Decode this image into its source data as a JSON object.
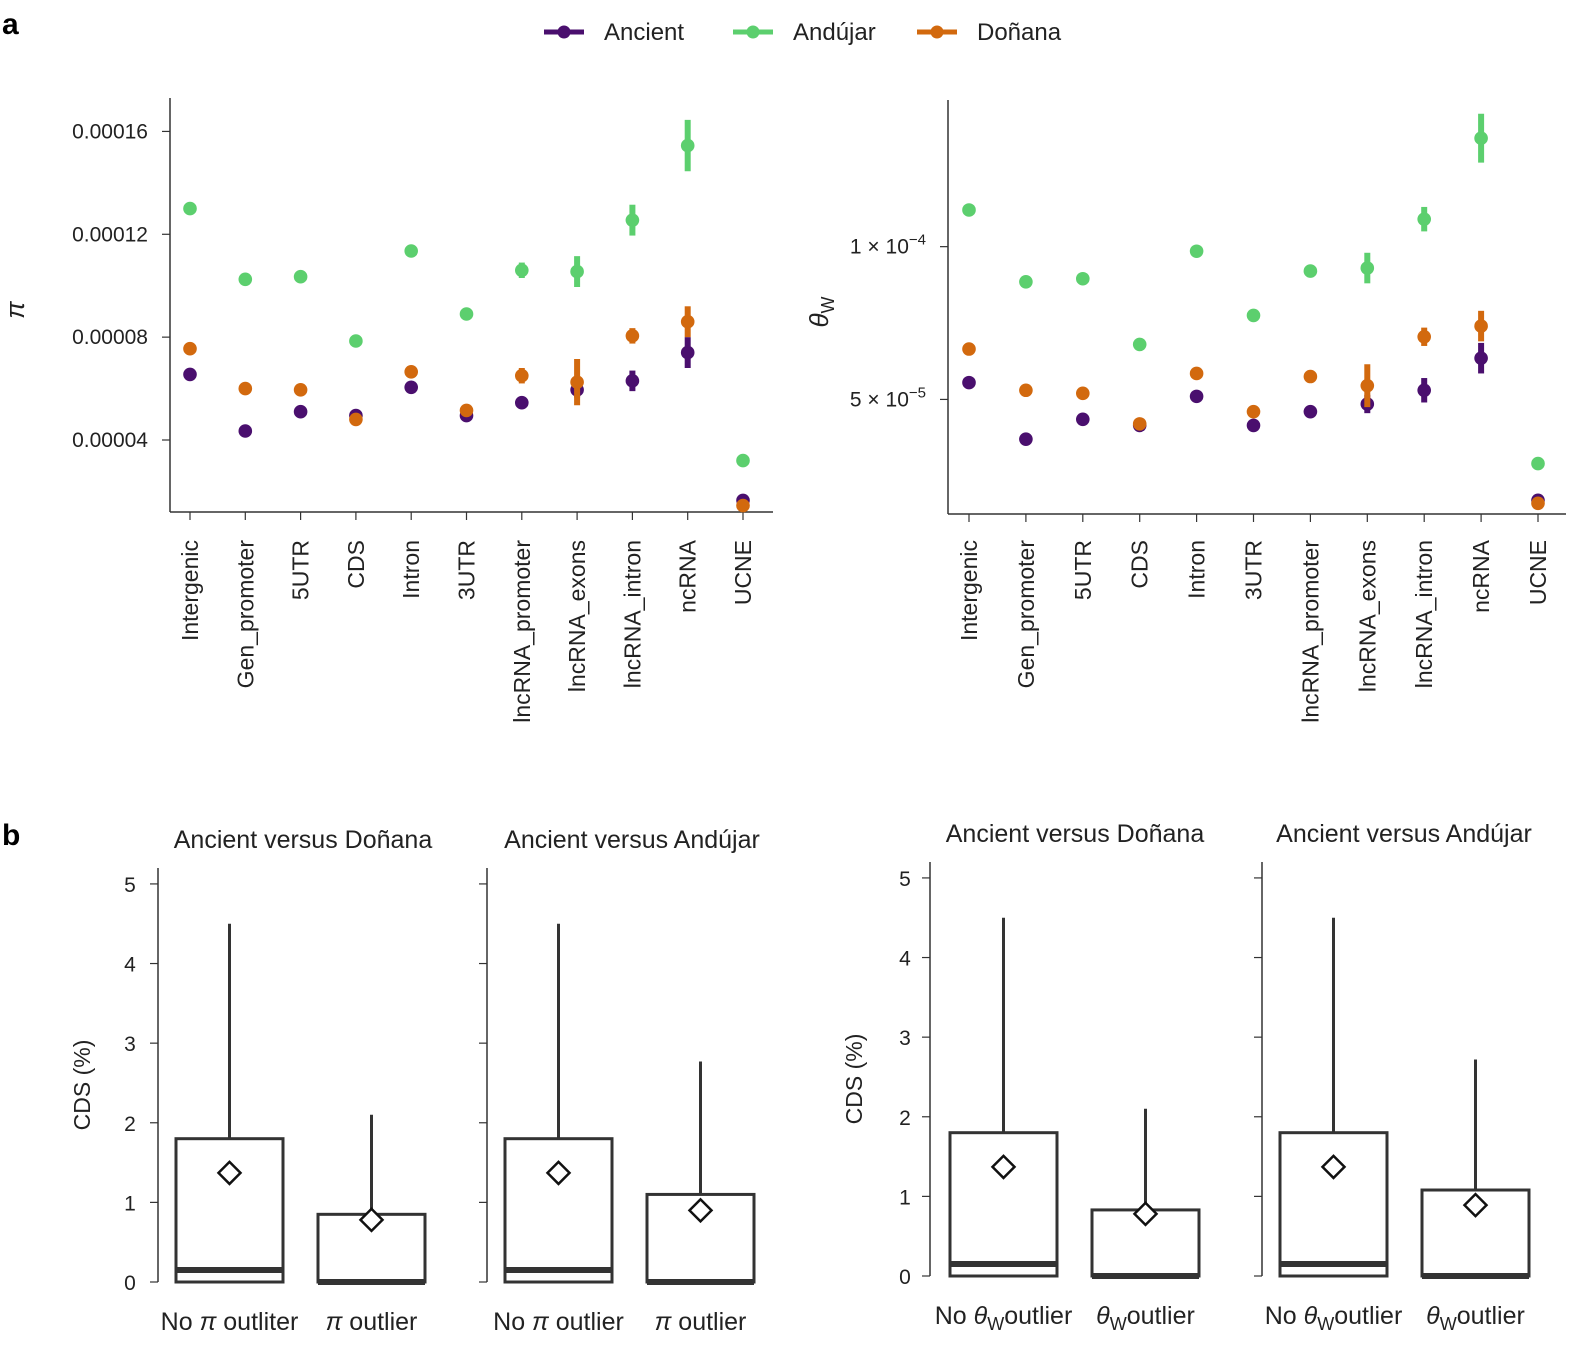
{
  "panel_labels": {
    "a": "a",
    "b": "b"
  },
  "legend": [
    {
      "name": "Ancient",
      "color": "#4a0f6e"
    },
    {
      "name": "Andújar",
      "color": "#5ccf6e"
    },
    {
      "name": "Doñana",
      "color": "#d2690e"
    }
  ],
  "chart_data": [
    {
      "type": "scatter",
      "title": "",
      "ylabel": "π",
      "xlabel": "",
      "ylim": [
        1.2e-05,
        0.000173
      ],
      "yticks": [
        4e-05,
        8e-05,
        0.00012,
        0.00016
      ],
      "ytick_labels": [
        "0.00004",
        "0.00008",
        "0.00012",
        "0.00016"
      ],
      "categories": [
        "Intergenic",
        "Gen_promoter",
        "5UTR",
        "CDS",
        "Intron",
        "3UTR",
        "lncRNA_promoter",
        "lncRNA_exons",
        "lncRNA_intron",
        "ncRNA",
        "UCNE"
      ],
      "series": [
        {
          "name": "Ancient",
          "values": [
            6.55e-05,
            4.35e-05,
            5.1e-05,
            4.95e-05,
            6.05e-05,
            4.95e-05,
            5.45e-05,
            5.95e-05,
            6.3e-05,
            7.4e-05,
            1.65e-05
          ],
          "err": [
            1e-06,
            1e-06,
            1e-06,
            1e-06,
            1e-06,
            1e-06,
            1.5e-06,
            3e-06,
            4e-06,
            6e-06,
            1e-06
          ]
        },
        {
          "name": "Andújar",
          "values": [
            0.00013,
            0.0001025,
            0.0001035,
            7.85e-05,
            0.0001135,
            8.9e-05,
            0.000106,
            0.0001055,
            0.0001255,
            0.0001545,
            3.2e-05
          ],
          "err": [
            1e-06,
            1e-06,
            1e-06,
            1e-06,
            1e-06,
            1e-06,
            3e-06,
            6e-06,
            6e-06,
            1e-05,
            1e-06
          ]
        },
        {
          "name": "Doñana",
          "values": [
            7.55e-05,
            6e-05,
            5.95e-05,
            4.8e-05,
            6.65e-05,
            5.15e-05,
            6.5e-05,
            6.25e-05,
            8.05e-05,
            8.6e-05,
            1.45e-05
          ],
          "err": [
            1e-06,
            1e-06,
            1e-06,
            1e-06,
            1e-06,
            1e-06,
            3e-06,
            9e-06,
            3e-06,
            6e-06,
            1e-06
          ]
        }
      ]
    },
    {
      "type": "scatter",
      "title": "",
      "ylabel": "θ",
      "ylabel_sub": "W",
      "xlabel": "",
      "ylim": [
        1.25e-05,
        0.000148
      ],
      "yticks": [
        5e-05,
        0.0001
      ],
      "ytick_labels": [
        {
          "base": "5 × 10",
          "exp": "−5"
        },
        {
          "base": "1 × 10",
          "exp": "−4"
        }
      ],
      "categories": [
        "Intergenic",
        "Gen_promoter",
        "5UTR",
        "CDS",
        "Intron",
        "3UTR",
        "lncRNA_promoter",
        "lncRNA_exons",
        "lncRNA_intron",
        "ncRNA",
        "UCNE"
      ],
      "series": [
        {
          "name": "Ancient",
          "values": [
            5.55e-05,
            3.7e-05,
            4.35e-05,
            4.15e-05,
            5.1e-05,
            4.15e-05,
            4.6e-05,
            4.85e-05,
            5.3e-05,
            6.35e-05,
            1.7e-05
          ],
          "err": [
            1e-06,
            1e-06,
            1e-06,
            1e-06,
            1e-06,
            1e-06,
            1e-06,
            3e-06,
            4e-06,
            5e-06,
            1e-06
          ]
        },
        {
          "name": "Andújar",
          "values": [
            0.000112,
            8.85e-05,
            8.95e-05,
            6.8e-05,
            9.85e-05,
            7.75e-05,
            9.2e-05,
            9.3e-05,
            0.000109,
            0.0001355,
            2.9e-05
          ],
          "err": [
            1e-06,
            1e-06,
            1e-06,
            1e-06,
            1e-06,
            1e-06,
            2e-06,
            5e-06,
            4e-06,
            8e-06,
            1e-06
          ]
        },
        {
          "name": "Doñana",
          "values": [
            6.65e-05,
            5.3e-05,
            5.2e-05,
            4.2e-05,
            5.85e-05,
            4.6e-05,
            5.75e-05,
            5.45e-05,
            7.05e-05,
            7.4e-05,
            1.6e-05
          ],
          "err": [
            1e-06,
            1e-06,
            1e-06,
            1e-06,
            1e-06,
            1e-06,
            2e-06,
            7e-06,
            3e-06,
            5e-06,
            1e-06
          ]
        }
      ]
    },
    {
      "type": "box",
      "title": "Ancient versus Doñana",
      "ylabel": "CDS (%)",
      "ylim": [
        0,
        5
      ],
      "yticks": [
        0,
        1,
        2,
        3,
        4,
        5
      ],
      "categories": [
        {
          "pre": "No ",
          "sym": "π",
          "sub": "",
          "post": " outliter"
        },
        {
          "pre": "",
          "sym": "π",
          "sub": "",
          "post": " outlier"
        }
      ],
      "boxes": [
        {
          "q1": 0,
          "median": 0.15,
          "q3": 1.8,
          "whisker_low": 0,
          "whisker_high": 4.5,
          "mean": 1.37
        },
        {
          "q1": 0,
          "median": 0,
          "q3": 0.85,
          "whisker_low": 0,
          "whisker_high": 2.1,
          "mean": 0.78
        }
      ]
    },
    {
      "type": "box",
      "title": "Ancient versus Andújar",
      "ylabel": "",
      "ylim": [
        0,
        5
      ],
      "yticks": [
        0,
        1,
        2,
        3,
        4,
        5
      ],
      "categories": [
        {
          "pre": "No ",
          "sym": "π",
          "sub": "",
          "post": " outlier"
        },
        {
          "pre": "",
          "sym": "π",
          "sub": "",
          "post": " outlier"
        }
      ],
      "boxes": [
        {
          "q1": 0,
          "median": 0.15,
          "q3": 1.8,
          "whisker_low": 0,
          "whisker_high": 4.5,
          "mean": 1.37
        },
        {
          "q1": 0,
          "median": 0,
          "q3": 1.1,
          "whisker_low": 0,
          "whisker_high": 2.77,
          "mean": 0.9
        }
      ]
    },
    {
      "type": "box",
      "title": "Ancient versus Doñana",
      "ylabel": "CDS (%)",
      "ylim": [
        0,
        5
      ],
      "yticks": [
        0,
        1,
        2,
        3,
        4,
        5
      ],
      "categories": [
        {
          "pre": "No ",
          "sym": "θ",
          "sub": "W",
          "post": "outlier"
        },
        {
          "pre": "",
          "sym": "θ",
          "sub": "W",
          "post": "outlier"
        }
      ],
      "boxes": [
        {
          "q1": 0,
          "median": 0.15,
          "q3": 1.8,
          "whisker_low": 0,
          "whisker_high": 4.5,
          "mean": 1.37
        },
        {
          "q1": 0,
          "median": 0,
          "q3": 0.83,
          "whisker_low": 0,
          "whisker_high": 2.1,
          "mean": 0.78
        }
      ]
    },
    {
      "type": "box",
      "title": "Ancient versus Andújar",
      "ylabel": "",
      "ylim": [
        0,
        5
      ],
      "yticks": [
        0,
        1,
        2,
        3,
        4,
        5
      ],
      "categories": [
        {
          "pre": "No ",
          "sym": "θ",
          "sub": "W",
          "post": "outlier"
        },
        {
          "pre": "",
          "sym": "θ",
          "sub": "W",
          "post": "outlier"
        }
      ],
      "boxes": [
        {
          "q1": 0,
          "median": 0.15,
          "q3": 1.8,
          "whisker_low": 0,
          "whisker_high": 4.5,
          "mean": 1.37
        },
        {
          "q1": 0,
          "median": 0,
          "q3": 1.08,
          "whisker_low": 0,
          "whisker_high": 2.72,
          "mean": 0.89
        }
      ]
    }
  ]
}
